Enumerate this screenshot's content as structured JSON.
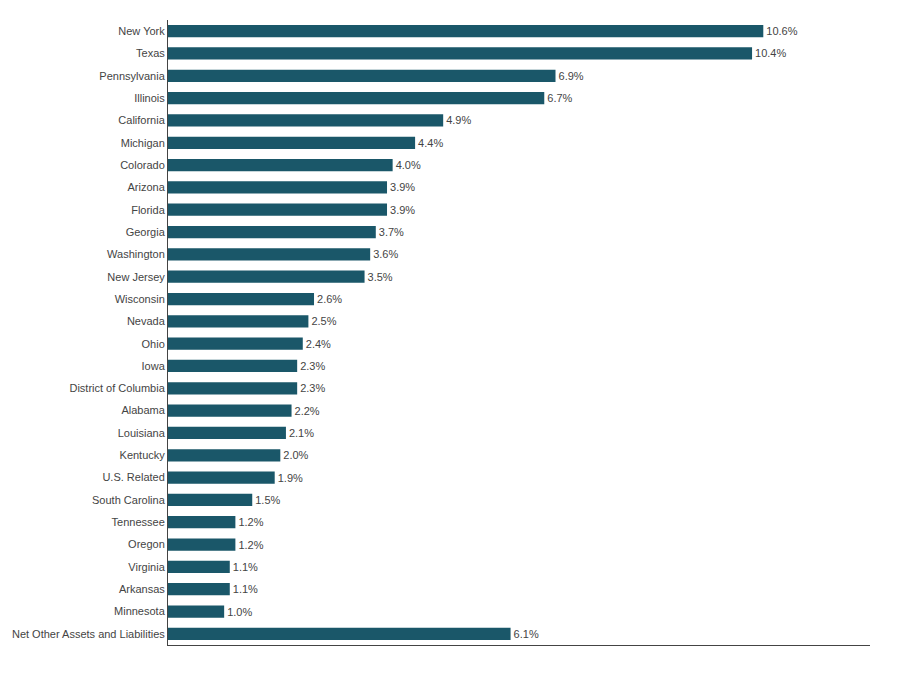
{
  "chart_data": {
    "type": "bar",
    "orientation": "horizontal",
    "categories": [
      "New York",
      "Texas",
      "Pennsylvania",
      "Illinois",
      "California",
      "Michigan",
      "Colorado",
      "Arizona",
      "Florida",
      "Georgia",
      "Washington",
      "New Jersey",
      "Wisconsin",
      "Nevada",
      "Ohio",
      "Iowa",
      "District of Columbia",
      "Alabama",
      "Louisiana",
      "Kentucky",
      "U.S. Related",
      "South Carolina",
      "Tennessee",
      "Oregon",
      "Virginia",
      "Arkansas",
      "Minnesota",
      "Net Other Assets and Liabilities"
    ],
    "values": [
      10.6,
      10.4,
      6.9,
      6.7,
      4.9,
      4.4,
      4.0,
      3.9,
      3.9,
      3.7,
      3.6,
      3.5,
      2.6,
      2.5,
      2.4,
      2.3,
      2.3,
      2.2,
      2.1,
      2.0,
      1.9,
      1.5,
      1.2,
      1.2,
      1.1,
      1.1,
      1.0,
      6.1
    ],
    "value_labels": [
      "10.6%",
      "10.4%",
      "6.9%",
      "6.7%",
      "4.9%",
      "4.4%",
      "4.0%",
      "3.9%",
      "3.9%",
      "3.7%",
      "3.6%",
      "3.5%",
      "2.6%",
      "2.5%",
      "2.4%",
      "2.3%",
      "2.3%",
      "2.2%",
      "2.1%",
      "2.0%",
      "1.9%",
      "1.5%",
      "1.2%",
      "1.2%",
      "1.1%",
      "1.1%",
      "1.0%",
      "6.1%"
    ],
    "color": "#1a5769",
    "xlim": [
      0,
      12.5
    ],
    "data_labels": true,
    "tick_labels": "y",
    "grid": false
  }
}
